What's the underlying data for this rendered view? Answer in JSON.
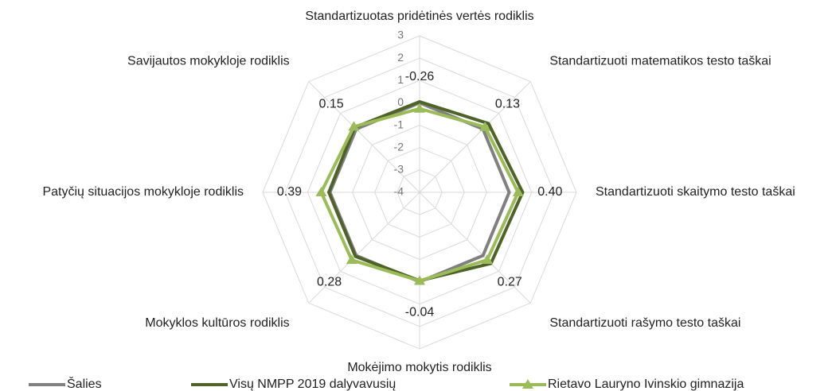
{
  "chart_data": {
    "type": "radar",
    "categories": [
      "Standartizuotas pridėtinės vertės rodiklis",
      "Standartizuoti matematikos testo taškai",
      "Standartizuoti skaitymo testo taškai",
      "Standartizuoti rašymo testo taškai",
      "Mokėjimo mokytis rodiklis",
      "Mokyklos kultūros rodiklis",
      "Patyčių situacijos mokykloje rodiklis",
      "Savijautos mokykloje rodiklis"
    ],
    "ylim": [
      -4,
      3
    ],
    "yticks": [
      -4,
      -3,
      -2,
      -1,
      0,
      1,
      2,
      3
    ],
    "grid": true,
    "legend": "bottom",
    "series": [
      {
        "name": "Šalies",
        "color": "#808080",
        "marker": null,
        "values": [
          0,
          0,
          0,
          0,
          0,
          0,
          0,
          0
        ]
      },
      {
        "name": "Visų NMPP 2019 dalyvavusių",
        "color": "#4f6228",
        "marker": null,
        "values": [
          0.05,
          0.35,
          0.6,
          0.5,
          -0.05,
          0.05,
          0.05,
          0.1
        ]
      },
      {
        "name": "Rietavo Lauryno Ivinskio gimnazija",
        "color": "#9bbb59",
        "marker": "triangle",
        "values": [
          -0.26,
          0.13,
          0.4,
          0.27,
          -0.04,
          0.28,
          0.39,
          0.15
        ],
        "value_labels": [
          "-0.26",
          "0.13",
          "0.40",
          "0.27",
          "-0.04",
          "0.28",
          "0.39",
          "0.15"
        ]
      }
    ]
  }
}
